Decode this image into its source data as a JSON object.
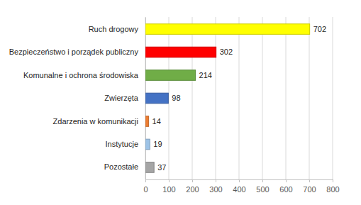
{
  "chart_data": {
    "type": "bar",
    "orientation": "horizontal",
    "categories": [
      "Ruch drogowy",
      "Bezpieczeństwo i porządek publiczny",
      "Komunalne i ochrona środowiska",
      "Zwierzęta",
      "Zdarzenia w komunikacji",
      "Instytucje",
      "Pozostałe"
    ],
    "values": [
      702,
      302,
      214,
      98,
      14,
      19,
      37
    ],
    "colors": [
      "#ffff00",
      "#ff0000",
      "#70ad47",
      "#4472c4",
      "#ed7d31",
      "#9dc3e6",
      "#a5a5a5"
    ],
    "xlim": [
      0,
      800
    ],
    "xticks": [
      0,
      100,
      200,
      300,
      400,
      500,
      600,
      700,
      800
    ],
    "grid": true,
    "data_labels": true
  }
}
